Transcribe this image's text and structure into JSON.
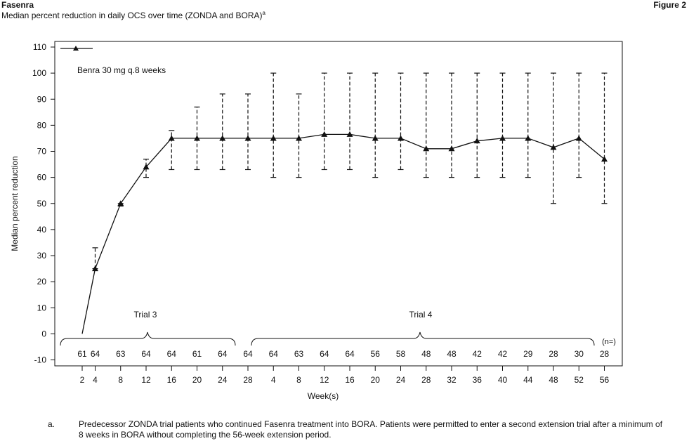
{
  "header": {
    "brand": "Fasenra",
    "figure_label": "Figure 2",
    "title": "Median percent reduction in daily OCS over time (ZONDA and BORA)",
    "title_sup": "a"
  },
  "chart_data": {
    "type": "line",
    "title": "Median percent reduction in daily OCS over time (ZONDA and BORA)",
    "xlabel": "Week(s)",
    "ylabel": "Median percent reduction",
    "ylim": [
      -10,
      110
    ],
    "yticks": [
      -10,
      0,
      10,
      20,
      30,
      40,
      50,
      60,
      70,
      80,
      90,
      100,
      110
    ],
    "grid": false,
    "legend_position": "top-left",
    "x_tick_labels": [
      "2",
      "4",
      "8",
      "12",
      "16",
      "20",
      "24",
      "28",
      "4",
      "8",
      "12",
      "16",
      "20",
      "24",
      "28",
      "32",
      "36",
      "40",
      "44",
      "48",
      "52",
      "56"
    ],
    "series": [
      {
        "name": "Benra 30 mg q.8 weeks",
        "marker": "triangle",
        "color": "#111111",
        "points": [
          {
            "x": "Trial 3 week 2",
            "y": 0
          },
          {
            "x": "Trial 3 week 4",
            "y": 25,
            "err_low": 25,
            "err_high": 33
          },
          {
            "x": "Trial 3 week 8",
            "y": 50,
            "err_low": 49,
            "err_high": 50
          },
          {
            "x": "Trial 3 week 12",
            "y": 64,
            "err_low": 60,
            "err_high": 67
          },
          {
            "x": "Trial 3 week 16",
            "y": 75,
            "err_low": 63,
            "err_high": 78
          },
          {
            "x": "Trial 3 week 20",
            "y": 75,
            "err_low": 63,
            "err_high": 87
          },
          {
            "x": "Trial 3 week 24",
            "y": 75,
            "err_low": 63,
            "err_high": 92
          },
          {
            "x": "Trial 3 week 28",
            "y": 75,
            "err_low": 63,
            "err_high": 92
          },
          {
            "x": "Trial 4 week 4",
            "y": 75,
            "err_low": 60,
            "err_high": 100
          },
          {
            "x": "Trial 4 week 8",
            "y": 75,
            "err_low": 60,
            "err_high": 92
          },
          {
            "x": "Trial 4 week 12",
            "y": 76.5,
            "err_low": 63,
            "err_high": 100
          },
          {
            "x": "Trial 4 week 16",
            "y": 76.5,
            "err_low": 63,
            "err_high": 100
          },
          {
            "x": "Trial 4 week 20",
            "y": 75,
            "err_low": 60,
            "err_high": 100
          },
          {
            "x": "Trial 4 week 24",
            "y": 75,
            "err_low": 63,
            "err_high": 100
          },
          {
            "x": "Trial 4 week 28",
            "y": 71,
            "err_low": 60,
            "err_high": 100
          },
          {
            "x": "Trial 4 week 32",
            "y": 71,
            "err_low": 60,
            "err_high": 100
          },
          {
            "x": "Trial 4 week 36",
            "y": 74,
            "err_low": 60,
            "err_high": 100
          },
          {
            "x": "Trial 4 week 40",
            "y": 75,
            "err_low": 60,
            "err_high": 100
          },
          {
            "x": "Trial 4 week 44",
            "y": 75,
            "err_low": 60,
            "err_high": 100
          },
          {
            "x": "Trial 4 week 48",
            "y": 71.5,
            "err_low": 50,
            "err_high": 100
          },
          {
            "x": "Trial 4 week 52",
            "y": 75,
            "err_low": 60,
            "err_high": 100
          },
          {
            "x": "Trial 4 week 56",
            "y": 67,
            "err_low": 50,
            "err_high": 100
          }
        ]
      }
    ],
    "n_label": "(n=)",
    "n_values": [
      "61",
      "64",
      "63",
      "64",
      "64",
      "61",
      "64",
      "64",
      "64",
      "63",
      "64",
      "64",
      "56",
      "58",
      "48",
      "48",
      "42",
      "42",
      "29",
      "28",
      "30",
      "28"
    ],
    "annotations": {
      "trial3_label": "Trial 3",
      "trial4_label": "Trial 4"
    }
  },
  "footnote": {
    "mark": "a.",
    "text": "Predecessor ZONDA trial patients who continued Fasenra treatment into BORA. Patients were permitted to enter a second extension trial after a minimum of 8 weeks in BORA without completing the 56-week extension period."
  }
}
